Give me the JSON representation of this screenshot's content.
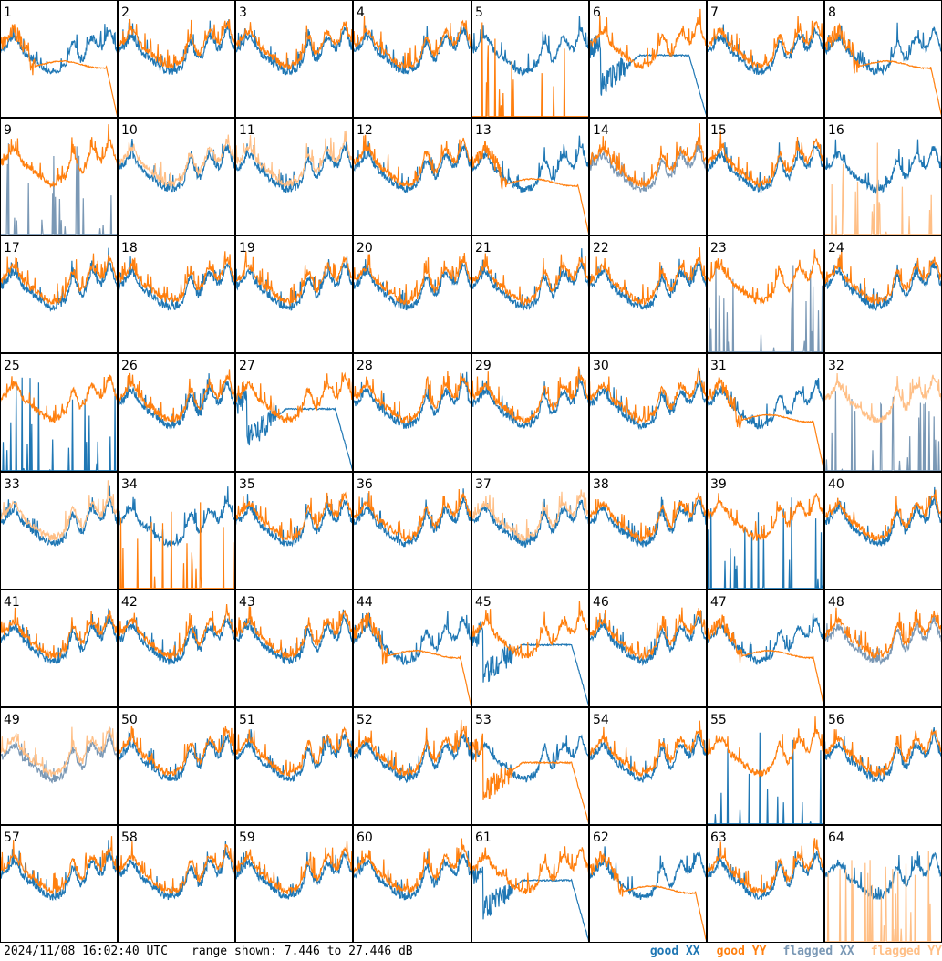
{
  "title": "",
  "timestamp": "2024/11/08 16:02:40 UTC",
  "range_label": "range shown: 7.446 to 27.446 dB",
  "legend": [
    {
      "label": "good XX",
      "color": "#1f77b4"
    },
    {
      "label": "good YY",
      "color": "#ff7f0e"
    },
    {
      "label": "flagged XX",
      "color": "#7a98b5"
    },
    {
      "label": "flagged YY",
      "color": "#ffbf86"
    }
  ],
  "chart_data": {
    "type": "line",
    "grid": {
      "rows": 8,
      "cols": 8
    },
    "ylim_db": [
      7.446,
      27.446
    ],
    "colors": {
      "good_xx": "#1f77b4",
      "good_yy": "#ff7f0e",
      "flagged_xx": "#7a98b5",
      "flagged_yy": "#ffbf86"
    },
    "panels": [
      {
        "id": "1",
        "xx": "normal",
        "yy": "droop"
      },
      {
        "id": "2",
        "xx": "normal",
        "yy": "normal"
      },
      {
        "id": "3",
        "xx": "normal",
        "yy": "normal"
      },
      {
        "id": "4",
        "xx": "normal",
        "yy": "normal"
      },
      {
        "id": "5",
        "xx": "normal",
        "yy": "spikes"
      },
      {
        "id": "6",
        "xx": "dip",
        "yy": "normal"
      },
      {
        "id": "7",
        "xx": "normal",
        "yy": "normal"
      },
      {
        "id": "8",
        "xx": "normal",
        "yy": "droop"
      },
      {
        "id": "9",
        "xx": "spikes",
        "yy": "normal",
        "xx_flagged": true
      },
      {
        "id": "10",
        "xx": "normal",
        "yy": "normal",
        "yy_flagged": true
      },
      {
        "id": "11",
        "xx": "normal",
        "yy": "normal",
        "yy_flagged": true
      },
      {
        "id": "12",
        "xx": "normal",
        "yy": "normal"
      },
      {
        "id": "13",
        "xx": "normal",
        "yy": "droop"
      },
      {
        "id": "14",
        "xx": "normal",
        "yy": "normal",
        "xx_flagged": true
      },
      {
        "id": "15",
        "xx": "normal",
        "yy": "normal"
      },
      {
        "id": "16",
        "xx": "normal",
        "yy": "spikes",
        "yy_flagged": true
      },
      {
        "id": "17",
        "xx": "normal",
        "yy": "normal"
      },
      {
        "id": "18",
        "xx": "normal",
        "yy": "normal"
      },
      {
        "id": "19",
        "xx": "normal",
        "yy": "normal"
      },
      {
        "id": "20",
        "xx": "normal",
        "yy": "normal"
      },
      {
        "id": "21",
        "xx": "normal",
        "yy": "normal"
      },
      {
        "id": "22",
        "xx": "normal",
        "yy": "normal"
      },
      {
        "id": "23",
        "xx": "spikes",
        "yy": "normal",
        "xx_flagged": true
      },
      {
        "id": "24",
        "xx": "normal",
        "yy": "normal"
      },
      {
        "id": "25",
        "xx": "spikes",
        "yy": "normal"
      },
      {
        "id": "26",
        "xx": "normal",
        "yy": "normal"
      },
      {
        "id": "27",
        "xx": "dip",
        "yy": "normal"
      },
      {
        "id": "28",
        "xx": "normal",
        "yy": "normal"
      },
      {
        "id": "29",
        "xx": "normal",
        "yy": "normal"
      },
      {
        "id": "30",
        "xx": "normal",
        "yy": "normal"
      },
      {
        "id": "31",
        "xx": "normal",
        "yy": "droop"
      },
      {
        "id": "32",
        "xx": "spikes",
        "yy": "normal",
        "xx_flagged": true,
        "yy_flagged": true
      },
      {
        "id": "33",
        "xx": "normal",
        "yy": "normal",
        "yy_flagged": true
      },
      {
        "id": "34",
        "xx": "normal",
        "yy": "spikes"
      },
      {
        "id": "35",
        "xx": "normal",
        "yy": "normal"
      },
      {
        "id": "36",
        "xx": "normal",
        "yy": "normal"
      },
      {
        "id": "37",
        "xx": "normal",
        "yy": "normal",
        "yy_flagged": true
      },
      {
        "id": "38",
        "xx": "normal",
        "yy": "normal"
      },
      {
        "id": "39",
        "xx": "spikes",
        "yy": "normal"
      },
      {
        "id": "40",
        "xx": "normal",
        "yy": "normal"
      },
      {
        "id": "41",
        "xx": "normal",
        "yy": "normal"
      },
      {
        "id": "42",
        "xx": "normal",
        "yy": "normal"
      },
      {
        "id": "43",
        "xx": "normal",
        "yy": "normal"
      },
      {
        "id": "44",
        "xx": "normal",
        "yy": "droop"
      },
      {
        "id": "45",
        "xx": "dip",
        "yy": "normal"
      },
      {
        "id": "46",
        "xx": "normal",
        "yy": "normal"
      },
      {
        "id": "47",
        "xx": "normal",
        "yy": "droop"
      },
      {
        "id": "48",
        "xx": "normal",
        "yy": "normal",
        "xx_flagged": true
      },
      {
        "id": "49",
        "xx": "normal",
        "yy": "normal",
        "xx_flagged": true,
        "yy_flagged": true
      },
      {
        "id": "50",
        "xx": "normal",
        "yy": "normal"
      },
      {
        "id": "51",
        "xx": "normal",
        "yy": "normal"
      },
      {
        "id": "52",
        "xx": "normal",
        "yy": "normal"
      },
      {
        "id": "53",
        "xx": "normal",
        "yy": "dip"
      },
      {
        "id": "54",
        "xx": "normal",
        "yy": "normal"
      },
      {
        "id": "55",
        "xx": "spikes",
        "yy": "normal"
      },
      {
        "id": "56",
        "xx": "normal",
        "yy": "normal"
      },
      {
        "id": "57",
        "xx": "normal",
        "yy": "normal"
      },
      {
        "id": "58",
        "xx": "normal",
        "yy": "normal"
      },
      {
        "id": "59",
        "xx": "normal",
        "yy": "normal"
      },
      {
        "id": "60",
        "xx": "normal",
        "yy": "normal"
      },
      {
        "id": "61",
        "xx": "dip",
        "yy": "normal"
      },
      {
        "id": "62",
        "xx": "normal",
        "yy": "droop"
      },
      {
        "id": "63",
        "xx": "normal",
        "yy": "normal"
      },
      {
        "id": "64",
        "xx": "normal",
        "yy": "spikes",
        "yy_flagged": true
      }
    ]
  }
}
